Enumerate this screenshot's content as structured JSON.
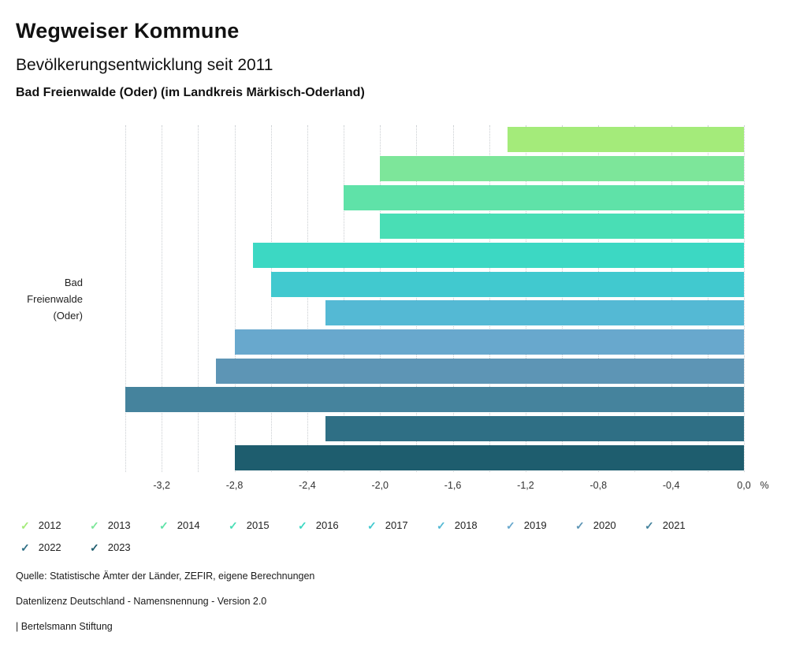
{
  "header": {
    "title": "Wegweiser Kommune",
    "subtitle": "Bevölkerungsentwicklung seit 2011",
    "location": "Bad Freienwalde (Oder) (im Landkreis Märkisch-Oderland)"
  },
  "chart_data": {
    "type": "bar",
    "orientation": "horizontal",
    "title": "Bevölkerungsentwicklung seit 2011",
    "category": "Bad Freienwalde (Oder)",
    "category_lines": [
      "Bad",
      "Freienwalde",
      "(Oder)"
    ],
    "years": [
      "2012",
      "2013",
      "2014",
      "2015",
      "2016",
      "2017",
      "2018",
      "2019",
      "2020",
      "2021",
      "2022",
      "2023"
    ],
    "values": [
      -1.3,
      -2.0,
      -2.2,
      -2.0,
      -2.7,
      -2.6,
      -2.3,
      -2.8,
      -2.9,
      -3.4,
      -2.3,
      -2.8
    ],
    "colors": [
      "#a4eb7a",
      "#7de69a",
      "#5fe2a8",
      "#49deb5",
      "#3cd8c3",
      "#41c9cf",
      "#54b9d4",
      "#68a8cd",
      "#5d95b5",
      "#45839d",
      "#2f6f85",
      "#1e5d6e"
    ],
    "xlim": [
      -3.4,
      0
    ],
    "grid_step": 0.2,
    "grid_style": "dotted",
    "x_unit": "%",
    "x_ticks": [
      {
        "value": -3.2,
        "label": "-3,2"
      },
      {
        "value": -2.8,
        "label": "-2,8"
      },
      {
        "value": -2.4,
        "label": "-2,4"
      },
      {
        "value": -2.0,
        "label": "-2,0"
      },
      {
        "value": -1.6,
        "label": "-1,6"
      },
      {
        "value": -1.2,
        "label": "-1,2"
      },
      {
        "value": -0.8,
        "label": "-0,8"
      },
      {
        "value": -0.4,
        "label": "-0,4"
      },
      {
        "value": 0.0,
        "label": "0,0"
      }
    ],
    "legend_position": "bottom"
  },
  "footer": {
    "source": "Quelle: Statistische Ämter der Länder, ZEFIR, eigene Berechnungen",
    "license": "Datenlizenz Deutschland - Namensnennung - Version 2.0",
    "attribution": "| Bertelsmann Stiftung"
  }
}
